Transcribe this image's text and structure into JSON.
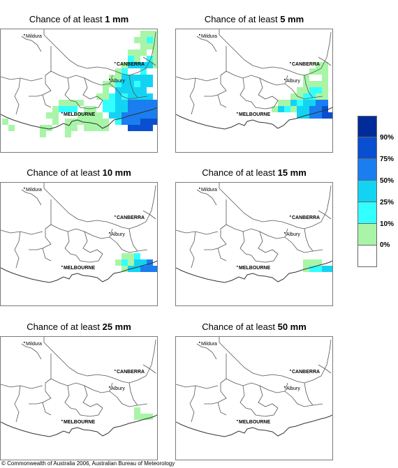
{
  "colors": {
    "c10": "#a8f5a8",
    "c25": "#33ffff",
    "c50": "#12d4f2",
    "c75": "#1a7ef0",
    "c90": "#0a4fd0",
    "c100": "#002b99",
    "border": "#555555"
  },
  "places": {
    "mildura": "Mildura",
    "canberra": "CANBERRA",
    "albury": "Albury",
    "melbourne": "MELBOURNE"
  },
  "panels": [
    {
      "prefix": "Chance of at least ",
      "amount": "1 mm"
    },
    {
      "prefix": "Chance of at least ",
      "amount": "5 mm"
    },
    {
      "prefix": "Chance of at least ",
      "amount": "10 mm"
    },
    {
      "prefix": "Chance of at least ",
      "amount": "15 mm"
    },
    {
      "prefix": "Chance of at least ",
      "amount": "25 mm"
    },
    {
      "prefix": "Chance of at least ",
      "amount": "50 mm"
    }
  ],
  "legend": {
    "labels": [
      "90%",
      "75%",
      "50%",
      "25%",
      "10%",
      "0%"
    ],
    "swatch_colors": [
      "#002b99",
      "#0a4fd0",
      "#1a7ef0",
      "#12d4f2",
      "#33ffff",
      "#a8f5a8",
      "#ffffff"
    ]
  },
  "copyright": "© Commonwealth of Australia 2006, Australian Bureau of Meteorology"
}
